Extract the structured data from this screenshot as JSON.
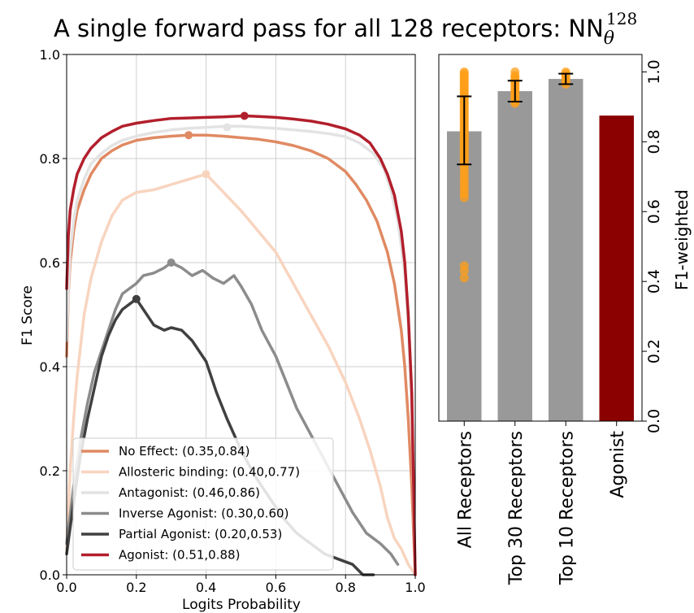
{
  "title": {
    "main": "A single forward pass for all 128 receptors: NN",
    "superscript": "128",
    "subscript": "θ"
  },
  "chart_data": [
    {
      "type": "line",
      "xlabel": "Logits Probability",
      "ylabel": "F1 Score",
      "xlim": [
        0.0,
        1.0
      ],
      "ylim": [
        0.0,
        1.0
      ],
      "xticks": [
        "0.0",
        "0.2",
        "0.4",
        "0.6",
        "0.8",
        "1.0"
      ],
      "yticks": [
        "0.0",
        "0.2",
        "0.4",
        "0.6",
        "0.8",
        "1.0"
      ],
      "grid": true,
      "legend_position": "lower-left",
      "series": [
        {
          "name": "No Effect: (0.35,0.84)",
          "color": "#e08a63",
          "best": [
            0.35,
            0.845
          ],
          "x": [
            0.0,
            0.005,
            0.01,
            0.02,
            0.03,
            0.05,
            0.07,
            0.1,
            0.13,
            0.16,
            0.2,
            0.25,
            0.3,
            0.35,
            0.4,
            0.45,
            0.5,
            0.55,
            0.6,
            0.65,
            0.7,
            0.75,
            0.8,
            0.83,
            0.86,
            0.89,
            0.92,
            0.94,
            0.96,
            0.97,
            0.98,
            0.99,
            1.0
          ],
          "y": [
            0.42,
            0.54,
            0.6,
            0.66,
            0.7,
            0.74,
            0.77,
            0.8,
            0.815,
            0.826,
            0.835,
            0.84,
            0.843,
            0.845,
            0.845,
            0.843,
            0.84,
            0.837,
            0.832,
            0.825,
            0.815,
            0.8,
            0.775,
            0.75,
            0.72,
            0.68,
            0.62,
            0.56,
            0.47,
            0.4,
            0.3,
            0.17,
            0.0
          ]
        },
        {
          "name": "Allosteric binding: (0.40,0.77)",
          "color": "#f8d4bf",
          "best": [
            0.4,
            0.77
          ],
          "x": [
            0.0,
            0.01,
            0.02,
            0.03,
            0.05,
            0.07,
            0.1,
            0.13,
            0.16,
            0.2,
            0.25,
            0.3,
            0.35,
            0.4,
            0.45,
            0.5,
            0.55,
            0.6,
            0.65,
            0.7,
            0.75,
            0.8,
            0.84,
            0.87,
            0.9,
            0.92,
            0.94,
            0.96,
            0.98,
            1.0
          ],
          "y": [
            0.05,
            0.2,
            0.3,
            0.38,
            0.5,
            0.57,
            0.64,
            0.69,
            0.72,
            0.735,
            0.74,
            0.75,
            0.76,
            0.77,
            0.735,
            0.7,
            0.66,
            0.62,
            0.56,
            0.5,
            0.44,
            0.37,
            0.3,
            0.24,
            0.17,
            0.11,
            0.07,
            0.05,
            0.02,
            0.0
          ]
        },
        {
          "name": "Antagonist: (0.46,0.86)",
          "color": "#e3e3e3",
          "best": [
            0.46,
            0.86
          ],
          "x": [
            0.0,
            0.005,
            0.01,
            0.02,
            0.03,
            0.05,
            0.07,
            0.1,
            0.13,
            0.16,
            0.2,
            0.25,
            0.3,
            0.35,
            0.4,
            0.46,
            0.5,
            0.55,
            0.6,
            0.65,
            0.7,
            0.75,
            0.8,
            0.84,
            0.88,
            0.91,
            0.93,
            0.95,
            0.97,
            0.98,
            0.99,
            1.0
          ],
          "y": [
            0.45,
            0.55,
            0.62,
            0.68,
            0.72,
            0.76,
            0.79,
            0.81,
            0.825,
            0.835,
            0.843,
            0.85,
            0.855,
            0.858,
            0.86,
            0.862,
            0.862,
            0.86,
            0.858,
            0.855,
            0.852,
            0.848,
            0.842,
            0.83,
            0.81,
            0.78,
            0.74,
            0.68,
            0.58,
            0.48,
            0.32,
            0.0
          ]
        },
        {
          "name": "Inverse Agonist: (0.30,0.60)",
          "color": "#8c8c8c",
          "best": [
            0.3,
            0.6
          ],
          "x": [
            0.0,
            0.02,
            0.04,
            0.06,
            0.08,
            0.1,
            0.12,
            0.14,
            0.16,
            0.18,
            0.2,
            0.22,
            0.25,
            0.28,
            0.3,
            0.33,
            0.36,
            0.39,
            0.42,
            0.45,
            0.48,
            0.5,
            0.53,
            0.56,
            0.6,
            0.63,
            0.66,
            0.7,
            0.74,
            0.78,
            0.82,
            0.86,
            0.9,
            0.93,
            0.95
          ],
          "y": [
            0.06,
            0.17,
            0.26,
            0.33,
            0.39,
            0.43,
            0.47,
            0.51,
            0.54,
            0.55,
            0.56,
            0.575,
            0.58,
            0.59,
            0.6,
            0.59,
            0.575,
            0.585,
            0.57,
            0.56,
            0.575,
            0.555,
            0.52,
            0.47,
            0.42,
            0.37,
            0.32,
            0.27,
            0.22,
            0.17,
            0.12,
            0.08,
            0.06,
            0.04,
            0.02
          ]
        },
        {
          "name": "Partial Agonist: (0.20,0.53)",
          "color": "#404040",
          "best": [
            0.2,
            0.53
          ],
          "x": [
            0.0,
            0.02,
            0.04,
            0.06,
            0.08,
            0.1,
            0.12,
            0.14,
            0.16,
            0.18,
            0.2,
            0.22,
            0.25,
            0.28,
            0.3,
            0.33,
            0.36,
            0.4,
            0.43,
            0.46,
            0.5,
            0.54,
            0.58,
            0.62,
            0.66,
            0.7,
            0.74,
            0.78,
            0.82,
            0.85,
            0.88
          ],
          "y": [
            0.04,
            0.14,
            0.23,
            0.3,
            0.36,
            0.42,
            0.46,
            0.49,
            0.51,
            0.52,
            0.53,
            0.51,
            0.48,
            0.47,
            0.475,
            0.47,
            0.45,
            0.41,
            0.35,
            0.3,
            0.24,
            0.19,
            0.15,
            0.11,
            0.08,
            0.06,
            0.04,
            0.03,
            0.02,
            0.0,
            0.0
          ]
        },
        {
          "name": "Agonist: (0.51,0.88)",
          "color": "#b21f2c",
          "best": [
            0.51,
            0.882
          ],
          "x": [
            0.0,
            0.005,
            0.01,
            0.02,
            0.03,
            0.05,
            0.07,
            0.1,
            0.13,
            0.16,
            0.2,
            0.25,
            0.3,
            0.35,
            0.4,
            0.45,
            0.51,
            0.55,
            0.6,
            0.65,
            0.7,
            0.75,
            0.8,
            0.84,
            0.87,
            0.9,
            0.92,
            0.94,
            0.96,
            0.97,
            0.98,
            0.99,
            1.0
          ],
          "y": [
            0.55,
            0.65,
            0.7,
            0.74,
            0.77,
            0.8,
            0.82,
            0.84,
            0.852,
            0.862,
            0.868,
            0.873,
            0.877,
            0.878,
            0.879,
            0.88,
            0.882,
            0.881,
            0.879,
            0.876,
            0.872,
            0.866,
            0.857,
            0.845,
            0.83,
            0.8,
            0.77,
            0.73,
            0.66,
            0.6,
            0.5,
            0.35,
            0.0
          ]
        }
      ]
    },
    {
      "type": "bar",
      "ylabel": "F1-weighted",
      "ylim": [
        0.0,
        1.05
      ],
      "yticks": [
        "0.0",
        "0.2",
        "0.4",
        "0.6",
        "0.8",
        "1.0"
      ],
      "y_axis_position": "right",
      "categories": [
        "All Receptors",
        "Top 30 Receptors",
        "Top 10 Receptors",
        "Agonist"
      ],
      "values": [
        0.83,
        0.945,
        0.98,
        0.875
      ],
      "bar_colors": [
        "#999999",
        "#999999",
        "#999999",
        "#8b0000"
      ],
      "error_low": [
        0.735,
        0.915,
        0.965,
        null
      ],
      "error_high": [
        0.93,
        0.975,
        0.995,
        null
      ],
      "scatter_color": "#ff9f1a",
      "scatter": [
        [
          1.0,
          0.995,
          0.99,
          0.985,
          0.98,
          0.975,
          0.97,
          0.965,
          0.96,
          0.955,
          0.95,
          0.945,
          0.94,
          0.935,
          0.93,
          0.925,
          0.92,
          0.915,
          0.91,
          0.905,
          0.9,
          0.895,
          0.89,
          0.885,
          0.88,
          0.875,
          0.87,
          0.865,
          0.86,
          0.855,
          0.85,
          0.845,
          0.84,
          0.835,
          0.83,
          0.825,
          0.82,
          0.815,
          0.81,
          0.805,
          0.8,
          0.795,
          0.79,
          0.785,
          0.78,
          0.775,
          0.77,
          0.765,
          0.76,
          0.755,
          0.75,
          0.745,
          0.74,
          0.735,
          0.73,
          0.72,
          0.71,
          0.7,
          0.69,
          0.68,
          0.67,
          0.66,
          0.65,
          0.64,
          0.445,
          0.43,
          0.41
        ],
        [
          1.0,
          0.99,
          0.985,
          0.98,
          0.975,
          0.97,
          0.965,
          0.96,
          0.955,
          0.95,
          0.945,
          0.94,
          0.935,
          0.93,
          0.925,
          0.92,
          0.915,
          0.91
        ],
        [
          1.0,
          0.995,
          0.99,
          0.985,
          0.98,
          0.975,
          0.97,
          0.965
        ]
      ]
    }
  ]
}
